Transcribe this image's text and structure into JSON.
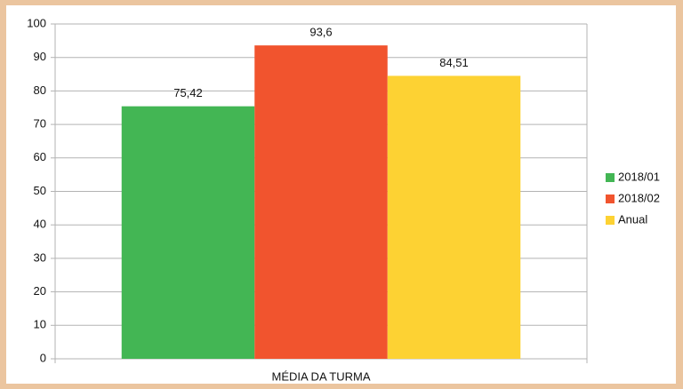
{
  "chart_data": {
    "type": "bar",
    "categories": [
      "MÉDIA DA TURMA"
    ],
    "series": [
      {
        "name": "2018/01",
        "color": "#43b654",
        "values": [
          75.42
        ],
        "value_labels": [
          "75,42"
        ]
      },
      {
        "name": "2018/02",
        "color": "#f1542e",
        "values": [
          93.6
        ],
        "value_labels": [
          "93,6"
        ]
      },
      {
        "name": "Anual",
        "color": "#fdd233",
        "values": [
          84.51
        ],
        "value_labels": [
          "84,51"
        ]
      }
    ],
    "ylim": [
      0,
      100
    ],
    "yticks": [
      0,
      10,
      20,
      30,
      40,
      50,
      60,
      70,
      80,
      90,
      100
    ],
    "grid": true,
    "legend": "right"
  }
}
